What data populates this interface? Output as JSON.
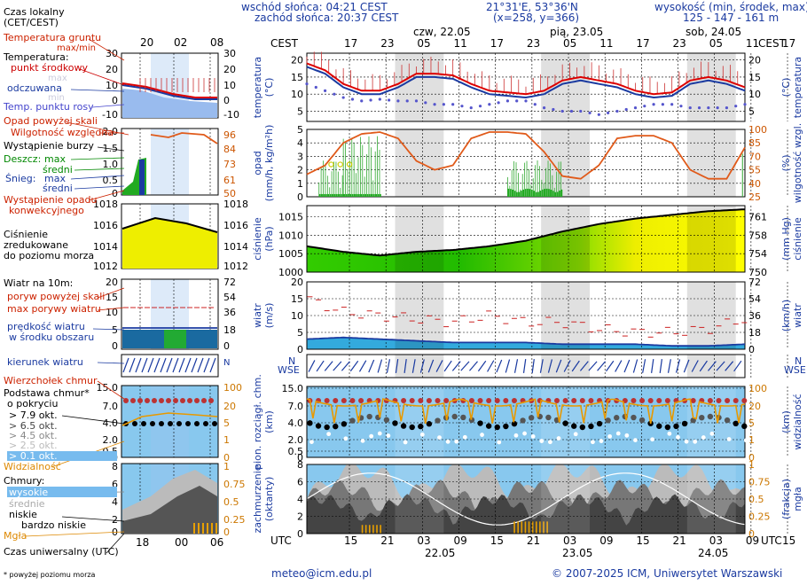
{
  "header": {
    "sunrise": "wschód słońca: 04:21 CEST",
    "sunset": "zachód słońca: 20:37 CEST",
    "coords": "21°31'E, 53°36'N",
    "grid": "(x=258, y=366)",
    "altitude_title": "wysokość (min, środek, max)",
    "altitude_values": "125 - 147 - 161 m",
    "day1": "czw, 22.05",
    "day2": "pią, 23.05",
    "day3": "sob, 24.05",
    "cest": "CEST",
    "utc": "UTC"
  },
  "cest_hours": [
    "17",
    "23",
    "05",
    "11",
    "17",
    "23",
    "05",
    "11",
    "17",
    "23",
    "05",
    "11",
    "17"
  ],
  "utc_hours": [
    "15",
    "21",
    "03",
    "09",
    "15",
    "21",
    "03",
    "09",
    "15",
    "21",
    "03",
    "09",
    "15"
  ],
  "utc_dates": [
    "22.05",
    "23.05",
    "24.05"
  ],
  "legend": {
    "time_local": "Czas lokalny",
    "time_local2": "(CET/CEST)",
    "mini_cest": [
      "20",
      "02",
      "08"
    ],
    "mini_utc": [
      "18",
      "00",
      "06"
    ],
    "soil": "Temperatura gruntu",
    "soil2": "max/min",
    "temp": "Temperatura:",
    "mid": "punkt środkowy",
    "max": "max",
    "min": "min",
    "feel": "odczuwana",
    "dew": "Temp. punktu rosy",
    "precip_above": "Opad powyżej skali",
    "humidity": "Wilgotność względna",
    "storm": "Wystąpienie burzy",
    "rain": "Deszcz:",
    "rain_max": "max",
    "rain_mean": "średni",
    "snow": "Śnieg:",
    "snow_max": "max",
    "snow_mean": "średni",
    "conv": "Wystąpienie opadu",
    "conv2": "konwekcyjnego",
    "pressure": "Ciśnienie",
    "pressure2": "zredukowane",
    "pressure3": "do poziomu morza",
    "wind10": "Wiatr na 10m:",
    "gust_above": "poryw powyżej skali",
    "gust_max": "max porywy wiatru",
    "wind_speed": "prędkość wiatru",
    "wind_speed2": "w środku obszaru",
    "wind_dir": "kierunek wiatru",
    "cloud_top": "Wierzchołek chmur",
    "cloud_base": "Podstawa chmur*",
    "cloud_base2": "o pokryciu",
    "okt79": "> 7.9 okt.",
    "okt65": "> 6.5 okt.",
    "okt45": "> 4.5 okt.",
    "okt25": "> 2.5 okt.",
    "okt01": "> 0.1 okt.",
    "visibility": "Widzialność",
    "clouds": "Chmury:",
    "high": "wysokie",
    "medium": "średnie",
    "low": "niskie",
    "very_low": "bardzo niskie",
    "fog": "Mgła",
    "utc_time": "Czas uniwersalny (UTC)",
    "footnote": "* powyżej poziomu morza",
    "mini_temp_left": [
      "30",
      "20",
      "10",
      "0",
      "-10"
    ],
    "mini_temp_right": [
      "30",
      "20",
      "10",
      "0",
      "-10"
    ],
    "mini_rain_left": [
      "2.0",
      "1.5",
      "1.0",
      "0.5",
      "0"
    ],
    "mini_rain_right": [
      "96",
      "84",
      "73",
      "61",
      "50"
    ],
    "mini_press_left": [
      "1018",
      "1016",
      "1014",
      "1012"
    ],
    "mini_press_right": [
      "1018",
      "1016",
      "1014",
      "1012"
    ],
    "mini_wind_left": [
      "20",
      "15",
      "10",
      "5",
      "0"
    ],
    "mini_wind_right": [
      "72",
      "54",
      "36",
      "18",
      "0"
    ],
    "mini_cb_left": [
      "15.0",
      "7.0",
      "4.0",
      "2.0",
      "0.5",
      "0"
    ],
    "mini_cb_right": [
      "100",
      "20",
      "5",
      "1",
      "0"
    ],
    "mini_cl_left": [
      "8",
      "6",
      "4",
      "2",
      "0"
    ],
    "mini_cl_right": [
      "1",
      "0.75",
      "0.5",
      "0.25",
      "0"
    ]
  },
  "panels": {
    "temp": {
      "left": "temperatura",
      "left2": "(°C)",
      "right": "(°C)",
      "right2": "temperatura",
      "ticks": [
        "20",
        "15",
        "10",
        "5"
      ]
    },
    "precip": {
      "left": "opad",
      "left2": "(mm/h, kg/m²h)",
      "right": "(%)",
      "right2": "wilgotność wzgl.",
      "ticks": [
        "5",
        "4",
        "3",
        "2",
        "1",
        "0"
      ],
      "rticks": [
        "100",
        "85",
        "70",
        "55",
        "40",
        "25"
      ]
    },
    "press": {
      "left": "ciśnienie",
      "left2": "(hPa)",
      "right": "(mm Hg)",
      "right2": "ciśnienie",
      "ticks": [
        "1015",
        "1010",
        "1005",
        "1000"
      ],
      "rticks": [
        "761",
        "758",
        "754",
        "750"
      ]
    },
    "wind": {
      "left": "wiatr",
      "left2": "(m/s)",
      "right": "(km/h)",
      "right2": "wiatr",
      "ticks": [
        "20",
        "15",
        "10",
        "5",
        "0"
      ],
      "rticks": [
        "72",
        "54",
        "36",
        "18",
        "0"
      ]
    },
    "dir": {
      "right": "N",
      "right2": "WSE"
    },
    "cbase": {
      "left": "pion. rozciągł. chm.",
      "left2": "(km)",
      "right": "(km)",
      "right2": "widzialność",
      "ticks": [
        "15.0",
        "7.0",
        "4.0",
        "2.0",
        "0.5",
        "0"
      ],
      "rticks": [
        "100",
        "20",
        "5",
        "1",
        "0"
      ]
    },
    "cloud": {
      "left": "zachmurzenie",
      "left2": "(oktanty)",
      "right": "(frakcja)",
      "right2": "mgła",
      "ticks": [
        "8",
        "6",
        "4",
        "2",
        "0"
      ],
      "rticks": [
        "1",
        "0.75",
        "0.5",
        "0.25",
        "0"
      ]
    }
  },
  "footer": {
    "email": "meteo@icm.edu.pl",
    "copyright": "© 2007-2025 ICM, Uniwersytet Warszawski"
  },
  "chart_data": [
    {
      "type": "line",
      "title": "temperatura",
      "ylabel": "(°C)",
      "ylim": [
        2,
        22
      ],
      "x_hours_from_start": [
        0,
        3,
        6,
        9,
        12,
        15,
        18,
        21,
        24,
        27,
        30,
        33,
        36,
        39,
        42,
        45,
        48,
        51,
        54,
        57,
        60,
        63,
        66,
        69,
        72
      ],
      "series": [
        {
          "name": "punkt środkowy",
          "values": [
            19,
            17,
            13,
            11,
            11,
            13,
            16,
            16,
            15.5,
            13,
            11,
            10.5,
            10,
            11,
            14,
            15,
            14,
            13,
            11,
            10,
            10.5,
            14,
            15,
            14,
            12
          ]
        },
        {
          "name": "odczuwana",
          "values": [
            18,
            16,
            12,
            10,
            10,
            12,
            15,
            15,
            14.5,
            12,
            10,
            9.5,
            9,
            10,
            13,
            14,
            13,
            12,
            10,
            9,
            9.5,
            13,
            14,
            13,
            11
          ]
        },
        {
          "name": "Temp. punktu rosy",
          "values": [
            13,
            11,
            9,
            8,
            8.5,
            8,
            8,
            7,
            7,
            6,
            7,
            8,
            8,
            6,
            5,
            5,
            4,
            5,
            6,
            7,
            7,
            6,
            6,
            6,
            7
          ]
        }
      ]
    },
    {
      "type": "line",
      "title": "opad",
      "ylabel": "(mm/h, kg/m²h)",
      "ylim": [
        0,
        5
      ],
      "y2label": "(%)",
      "y2lim": [
        25,
        100
      ],
      "x_hours_from_start": [
        0,
        3,
        6,
        9,
        12,
        15,
        18,
        21,
        24,
        27,
        30,
        33,
        36,
        39,
        42,
        45,
        48,
        51,
        54,
        57,
        60,
        63,
        66,
        69,
        72
      ],
      "series": [
        {
          "name": "Wilgotność względna",
          "values": [
            50,
            60,
            85,
            95,
            97,
            90,
            65,
            55,
            60,
            90,
            97,
            97,
            95,
            75,
            48,
            45,
            60,
            90,
            93,
            93,
            85,
            55,
            45,
            45,
            80
          ]
        }
      ]
    },
    {
      "type": "area",
      "title": "ciśnienie",
      "ylabel": "(hPa)",
      "ylim": [
        1000,
        1018
      ],
      "x_hours_from_start": [
        0,
        6,
        12,
        18,
        24,
        30,
        36,
        42,
        48,
        54,
        60,
        66,
        72
      ],
      "series": [
        {
          "name": "Ciśnienie",
          "values": [
            1007,
            1005.5,
            1004.5,
            1005.5,
            1006,
            1007,
            1008.5,
            1011,
            1013,
            1014.5,
            1015.5,
            1016.5,
            1017
          ]
        }
      ]
    },
    {
      "type": "line",
      "title": "wiatr",
      "ylabel": "(m/s)",
      "ylim": [
        0,
        20
      ],
      "x_hours_from_start": [
        0,
        6,
        12,
        18,
        24,
        30,
        36,
        42,
        48,
        54,
        60,
        66,
        72
      ],
      "series": [
        {
          "name": "max porywy wiatru",
          "values": [
            15,
            11,
            10,
            9,
            8,
            10,
            8,
            8,
            6,
            5,
            5,
            6,
            9
          ]
        },
        {
          "name": "prędkość wiatru",
          "values": [
            3,
            3.5,
            3,
            2.5,
            2,
            2,
            2,
            1.5,
            1.5,
            1.5,
            1,
            1,
            1.5
          ]
        }
      ]
    }
  ]
}
